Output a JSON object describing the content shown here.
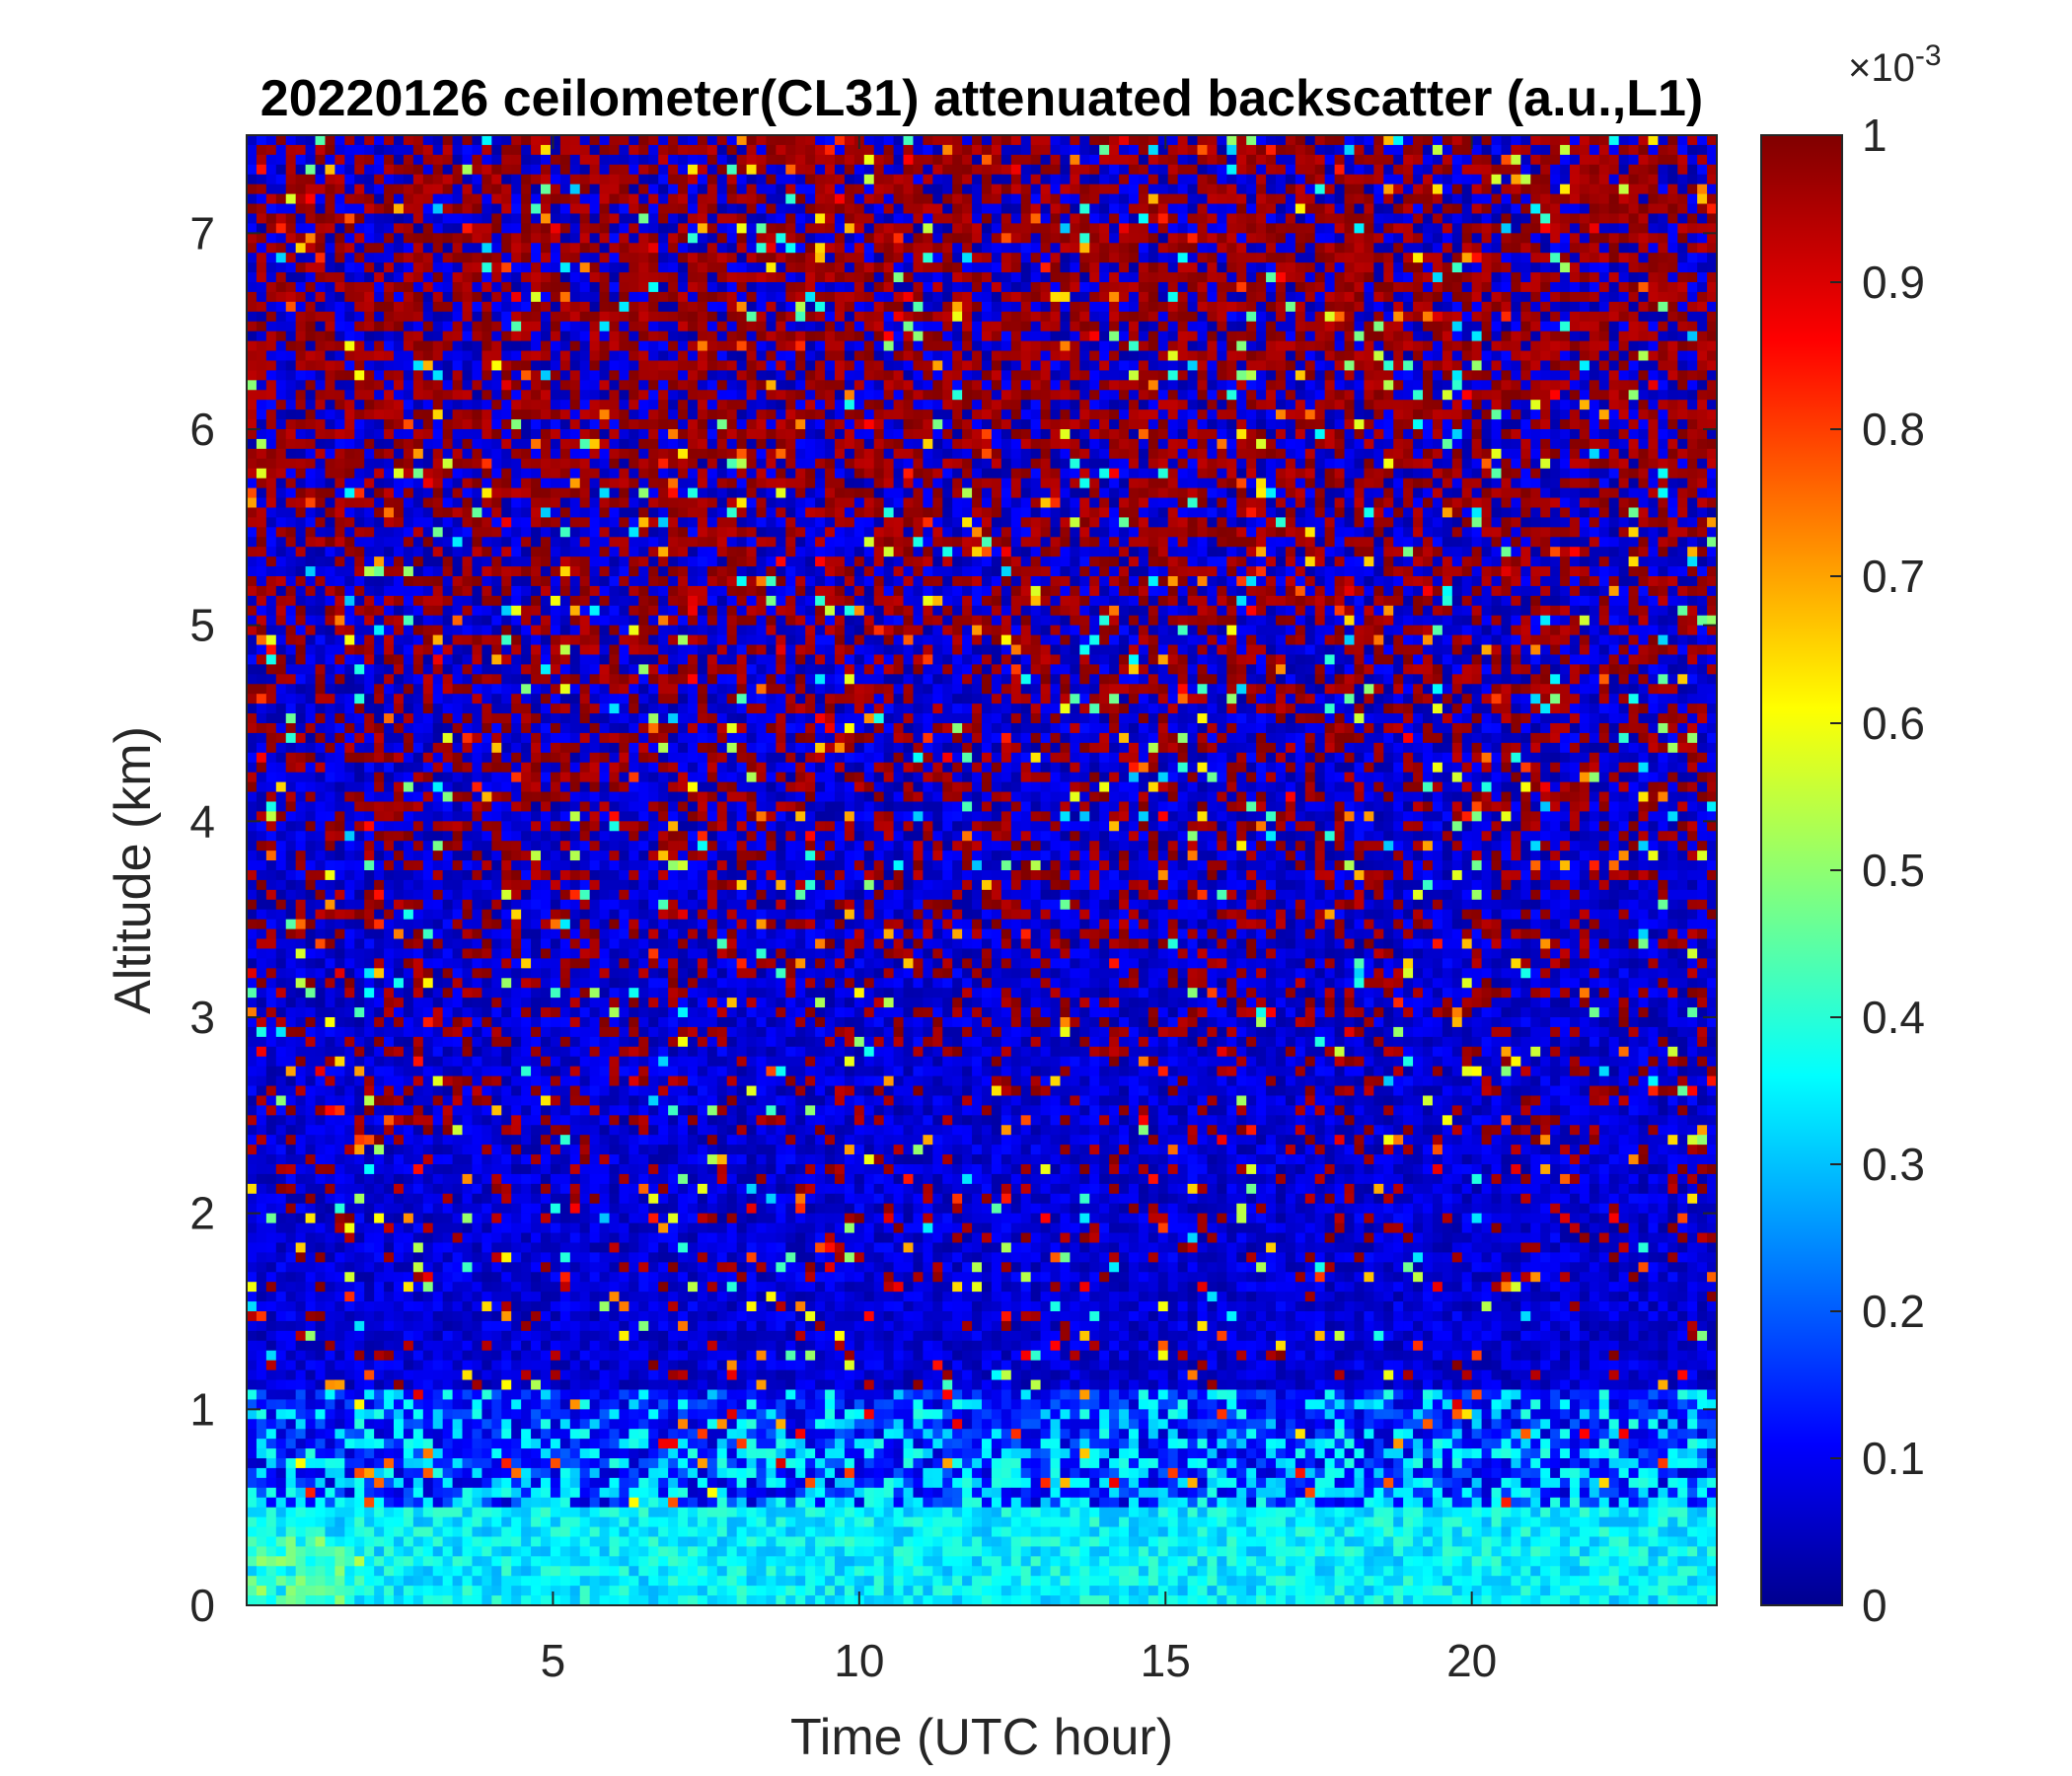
{
  "chart_data": {
    "type": "heatmap",
    "title": "20220126 ceilometer(CL31) attenuated backscatter (a.u.,L1)",
    "xlabel": "Time (UTC hour)",
    "ylabel": "Altitude (km)",
    "xlim": [
      0,
      24
    ],
    "ylim": [
      0,
      7.5
    ],
    "x_ticks": [
      5,
      10,
      15,
      20
    ],
    "y_ticks": [
      0,
      1,
      2,
      3,
      4,
      5,
      6,
      7
    ],
    "grid": false,
    "colorbar": {
      "colormap": "jet",
      "range": [
        0,
        0.001
      ],
      "ticks": [
        "0",
        "0.1",
        "0.2",
        "0.3",
        "0.4",
        "0.5",
        "0.6",
        "0.7",
        "0.8",
        "0.9",
        "1"
      ],
      "exponent_base": "×10",
      "exponent_power": "-3",
      "placement": "right"
    },
    "description_profile": [
      {
        "altitude_km": 0.1,
        "typical_value_e-3": 0.35
      },
      {
        "altitude_km": 0.3,
        "typical_value_e-3": 0.32
      },
      {
        "altitude_km": 0.6,
        "typical_value_e-3": 0.25
      },
      {
        "altitude_km": 1.0,
        "typical_value_e-3": 0.18
      },
      {
        "altitude_km": 2.0,
        "typical_value_e-3": 0.1
      },
      {
        "altitude_km": 4.0,
        "typical_value_e-3": 0.3
      },
      {
        "altitude_km": 7.0,
        "typical_value_e-3": 0.6
      }
    ]
  }
}
